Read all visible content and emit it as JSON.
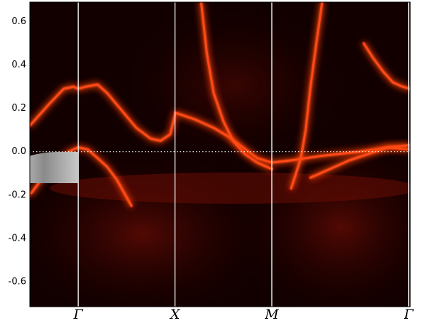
{
  "chart_data": {
    "type": "line",
    "xlim": [
      -0.5,
      3.43
    ],
    "ylim": [
      -0.715,
      0.69
    ],
    "xticks": [
      {
        "value": 0,
        "label": "Γ"
      },
      {
        "value": 1,
        "label": "X"
      },
      {
        "value": 2,
        "label": "M"
      },
      {
        "value": 3.414,
        "label": "Γ"
      }
    ],
    "yticks": [
      0.6,
      0.4,
      0.2,
      {
        "value": 0,
        "label": "0.0"
      },
      -0.2,
      -0.4,
      -0.6
    ],
    "grid": true,
    "series": [
      {
        "color": "#ff4a18",
        "x": [
          -0.5,
          -0.35,
          -0.2,
          -0.1,
          0,
          0.1,
          0.2,
          0.3,
          0.4,
          0.55
        ],
        "values": [
          -0.2,
          -0.11,
          -0.04,
          0.0,
          0.02,
          0.01,
          -0.03,
          -0.07,
          -0.13,
          -0.25
        ]
      },
      {
        "color": "#ff4a18",
        "x": [
          -0.5,
          -0.3,
          -0.15,
          -0.05,
          0,
          0.08,
          0.2,
          0.3,
          0.45,
          0.6,
          0.75,
          0.85,
          0.95,
          1.0
        ],
        "values": [
          0.12,
          0.22,
          0.29,
          0.3,
          0.29,
          0.3,
          0.31,
          0.27,
          0.19,
          0.11,
          0.06,
          0.05,
          0.08,
          0.17
        ]
      },
      {
        "color": "#ff4a18",
        "x": [
          1.0,
          1.2,
          1.4,
          1.55,
          1.7,
          1.85,
          2.0,
          2.2,
          2.5,
          2.9,
          3.2,
          3.43
        ],
        "values": [
          0.18,
          0.15,
          0.11,
          0.07,
          0.02,
          -0.03,
          -0.05,
          -0.04,
          -0.02,
          0.0,
          0.02,
          0.01
        ]
      },
      {
        "color": "#ff4a18",
        "x": [
          1.27,
          1.33,
          1.4,
          1.5,
          1.6,
          1.72,
          1.85,
          2.0
        ],
        "values": [
          0.69,
          0.45,
          0.27,
          0.14,
          0.05,
          -0.01,
          -0.05,
          -0.08
        ]
      },
      {
        "color": "#ff4a18",
        "x": [
          2.52,
          2.46,
          2.4,
          2.35,
          2.3,
          2.25,
          2.2
        ],
        "values": [
          0.69,
          0.5,
          0.3,
          0.1,
          -0.03,
          -0.1,
          -0.17
        ]
      },
      {
        "color": "#ff4a18",
        "x": [
          2.95,
          3.05,
          3.15,
          3.25,
          3.35,
          3.43
        ],
        "values": [
          0.5,
          0.43,
          0.37,
          0.32,
          0.3,
          0.29
        ]
      },
      {
        "color": "#ff4a18",
        "x": [
          2.4,
          2.6,
          2.8,
          3.0,
          3.2,
          3.43
        ],
        "values": [
          -0.12,
          -0.08,
          -0.04,
          -0.01,
          0.02,
          0.03
        ]
      }
    ]
  }
}
